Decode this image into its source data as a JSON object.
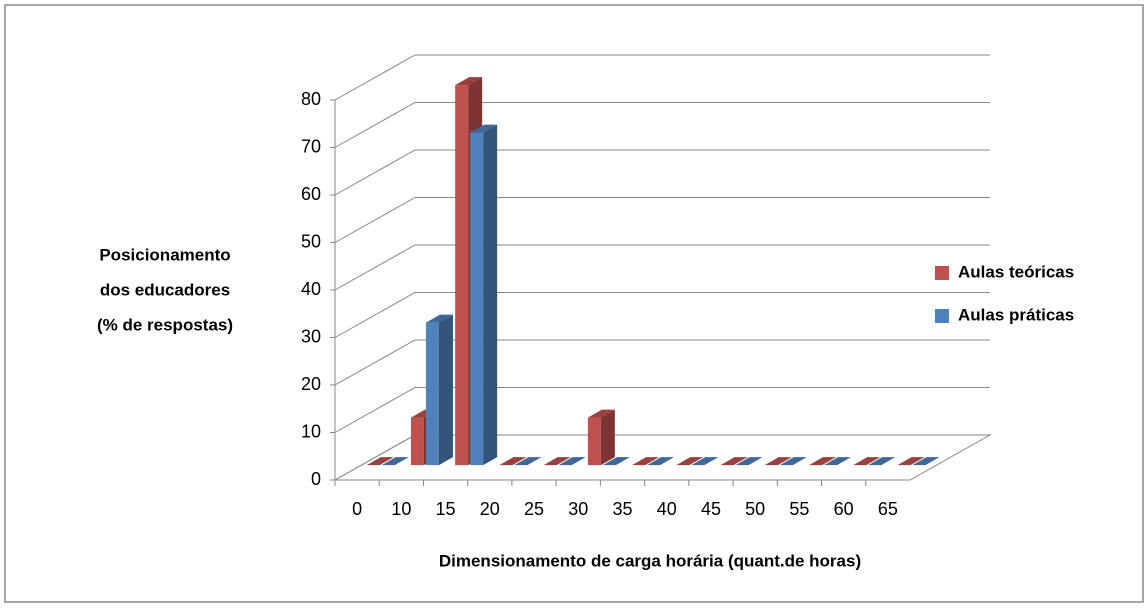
{
  "chart_data": {
    "type": "bar3d",
    "y_label": [
      "Posicionamento",
      "dos educadores",
      "(% de respostas)"
    ],
    "x_label": "Dimensionamento de carga horária (quant.de horas)",
    "categories": [
      "0",
      "10",
      "15",
      "20",
      "25",
      "30",
      "35",
      "40",
      "45",
      "50",
      "55",
      "60",
      "65"
    ],
    "series": [
      {
        "name": "Aulas teóricas",
        "color": "#c0504d",
        "values": [
          0,
          10,
          80,
          0,
          0,
          10,
          0,
          0,
          0,
          0,
          0,
          0,
          0
        ]
      },
      {
        "name": "Aulas práticas",
        "color": "#4f81bd",
        "values": [
          0,
          30,
          70,
          0,
          0,
          0,
          0,
          0,
          0,
          0,
          0,
          0,
          0
        ]
      }
    ],
    "ylim": [
      0,
      80
    ],
    "yticks": [
      0,
      10,
      20,
      30,
      40,
      50,
      60,
      70,
      80
    ],
    "grid": true,
    "legend": "right"
  }
}
